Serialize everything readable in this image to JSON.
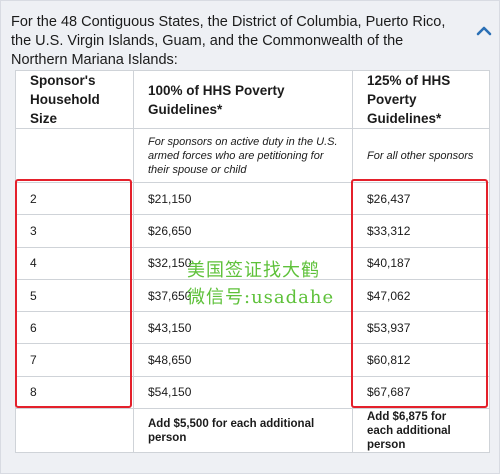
{
  "header": {
    "text": "For the 48 Contiguous States, the District of Columbia, Puerto Rico, the U.S. Virgin Islands, Guam, and the Commonwealth of the Northern Mariana Islands:",
    "toggle_icon": "chevron-up-icon"
  },
  "table": {
    "columns": [
      "Sponsor's Household Size",
      "100% of HHS Poverty Guidelines*",
      "125% of HHS Poverty Guidelines*"
    ],
    "notes": [
      "",
      "For sponsors on active duty in the U.S. armed forces who are petitioning for their spouse or child",
      "For all other sponsors"
    ],
    "rows": [
      [
        "2",
        "$21,150",
        "$26,437"
      ],
      [
        "3",
        "$26,650",
        "$33,312"
      ],
      [
        "4",
        "$32,150",
        "$40,187"
      ],
      [
        "5",
        "$37,650",
        "$47,062"
      ],
      [
        "6",
        "$43,150",
        "$53,937"
      ],
      [
        "7",
        "$48,650",
        "$60,812"
      ],
      [
        "8",
        "$54,150",
        "$67,687"
      ]
    ],
    "additional": [
      "",
      "Add $5,500 for each additional person",
      "Add $6,875 for each additional person"
    ]
  },
  "watermark": {
    "line1": "美国签证找大鹤",
    "line2": "微信号:usadahe"
  },
  "colors": {
    "highlight_box": "#e4202b",
    "watermark": "#5ec13a",
    "toggle_icon": "#2a6fb5"
  }
}
